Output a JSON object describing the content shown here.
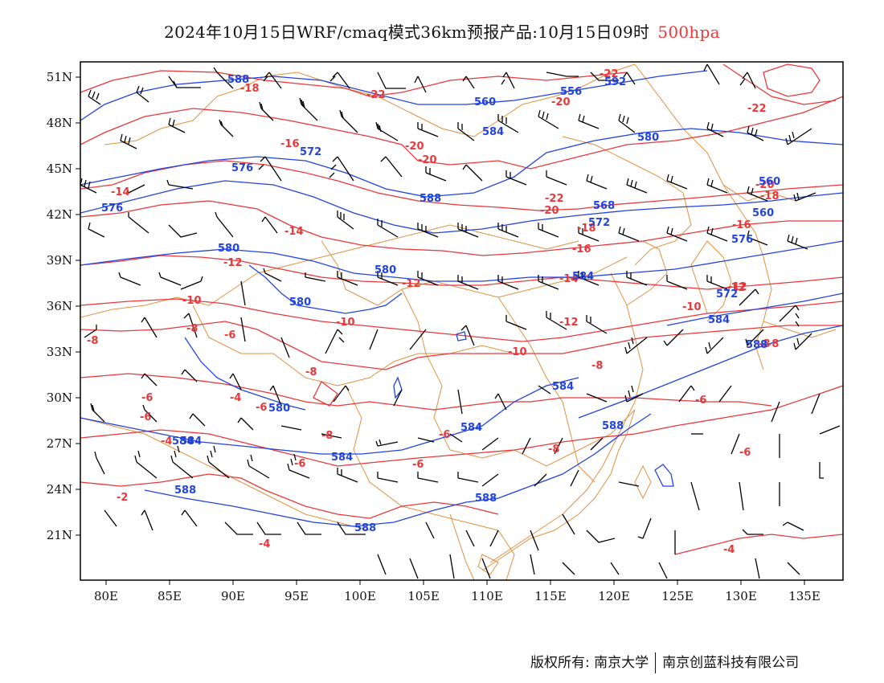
{
  "title": {
    "main": "2024年10月15日WRF/cmaq模式36km预报产品:10月15日09时",
    "level": "500hpa"
  },
  "axes": {
    "lon_labels": [
      "80E",
      "85E",
      "90E",
      "95E",
      "100E",
      "105E",
      "110E",
      "115E",
      "120E",
      "125E",
      "130E",
      "135E"
    ],
    "lat_labels": [
      "51N",
      "48N",
      "45N",
      "42N",
      "39N",
      "36N",
      "33N",
      "30N",
      "27N",
      "24N",
      "21N"
    ]
  },
  "temperature_labels": [
    "-22",
    "-22",
    "-18",
    "-22",
    "-20",
    "-20",
    "-20",
    "-16",
    "-20",
    "-22",
    "-20",
    "-18",
    "-16",
    "-14",
    "-14",
    "-18",
    "-16",
    "-12",
    "-12",
    "-14",
    "-12",
    "-10",
    "-10",
    "-12",
    "-10",
    "-8",
    "-10",
    "-6",
    "-8",
    "-8",
    "-8",
    "-6",
    "-4",
    "-6",
    "-6",
    "-8",
    "-6",
    "-6",
    "-4",
    "-8",
    "-6",
    "-6",
    "-2",
    "-4",
    "-4",
    "-6",
    "-8",
    "-12",
    "-8"
  ],
  "height_labels": [
    "588",
    "592",
    "556",
    "560",
    "584",
    "580",
    "572",
    "576",
    "576",
    "588",
    "568",
    "572",
    "580",
    "576",
    "580",
    "560",
    "580",
    "584",
    "584",
    "580",
    "584",
    "588",
    "584",
    "584",
    "588",
    "588",
    "588",
    "560",
    "588",
    "584",
    "572",
    "584"
  ],
  "colors": {
    "temperature": "#e8383b",
    "height": "#2244dd",
    "border": "#e09040",
    "wind": "#000000"
  },
  "footer": {
    "copyright": "版权所有: 南京大学",
    "company": "南京创蓝科技有限公司"
  }
}
